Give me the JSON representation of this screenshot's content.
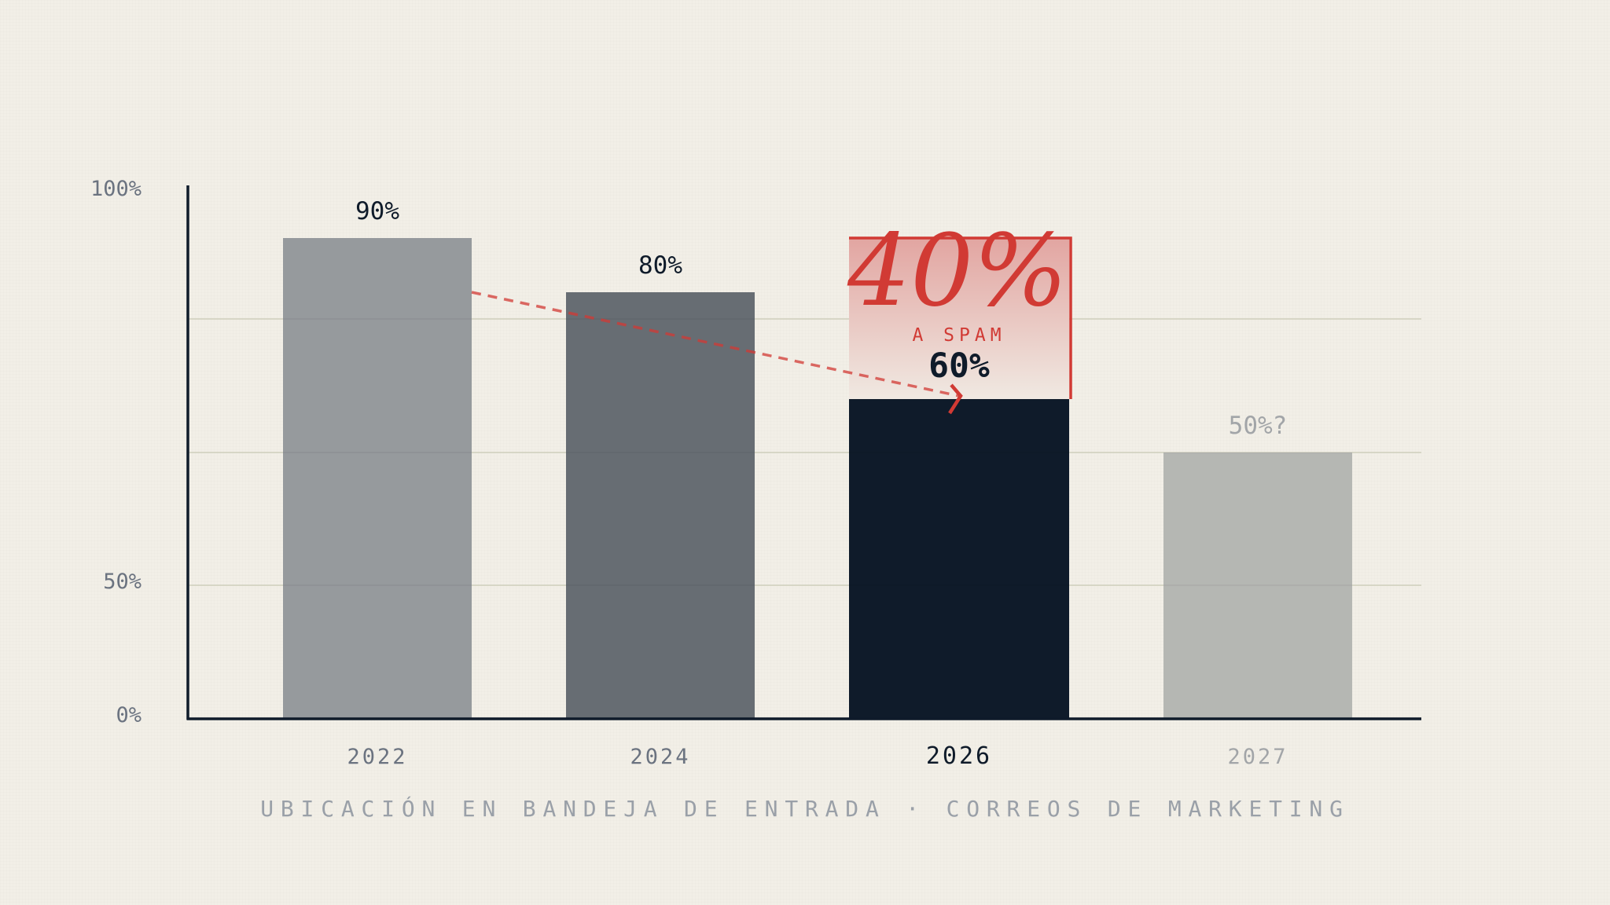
{
  "chart_data": {
    "type": "bar",
    "categories": [
      "2022",
      "2024",
      "2026",
      "2027"
    ],
    "values": [
      90,
      80,
      60,
      50
    ],
    "value_labels": [
      "90%",
      "80%",
      "60%",
      "50%?"
    ],
    "projected": [
      false,
      false,
      false,
      true
    ],
    "highlight_index": 2,
    "y_tick_labels": [
      "100%",
      "50%",
      "0%"
    ],
    "caption": "UBICACIÓN EN BANDEJA DE ENTRADA · CORREOS DE MARKETING",
    "grid": true,
    "annotation": {
      "value": "40%",
      "label": "A SPAM",
      "from_category": "2022",
      "to_category": "2026",
      "region_values": [
        60,
        90
      ]
    },
    "colors": {
      "background": "#f2efe7",
      "bars": [
        "#969a9d",
        "#676d73",
        "#0f1b2a",
        "#b5b7b3"
      ],
      "axis": "#0f1b2a",
      "gridline": "#dcdcc8",
      "accent": "#d13a34",
      "tick_text": "#6b7380",
      "caption_text": "#9aa0a8",
      "projected_text": "#a2a5a8"
    }
  }
}
